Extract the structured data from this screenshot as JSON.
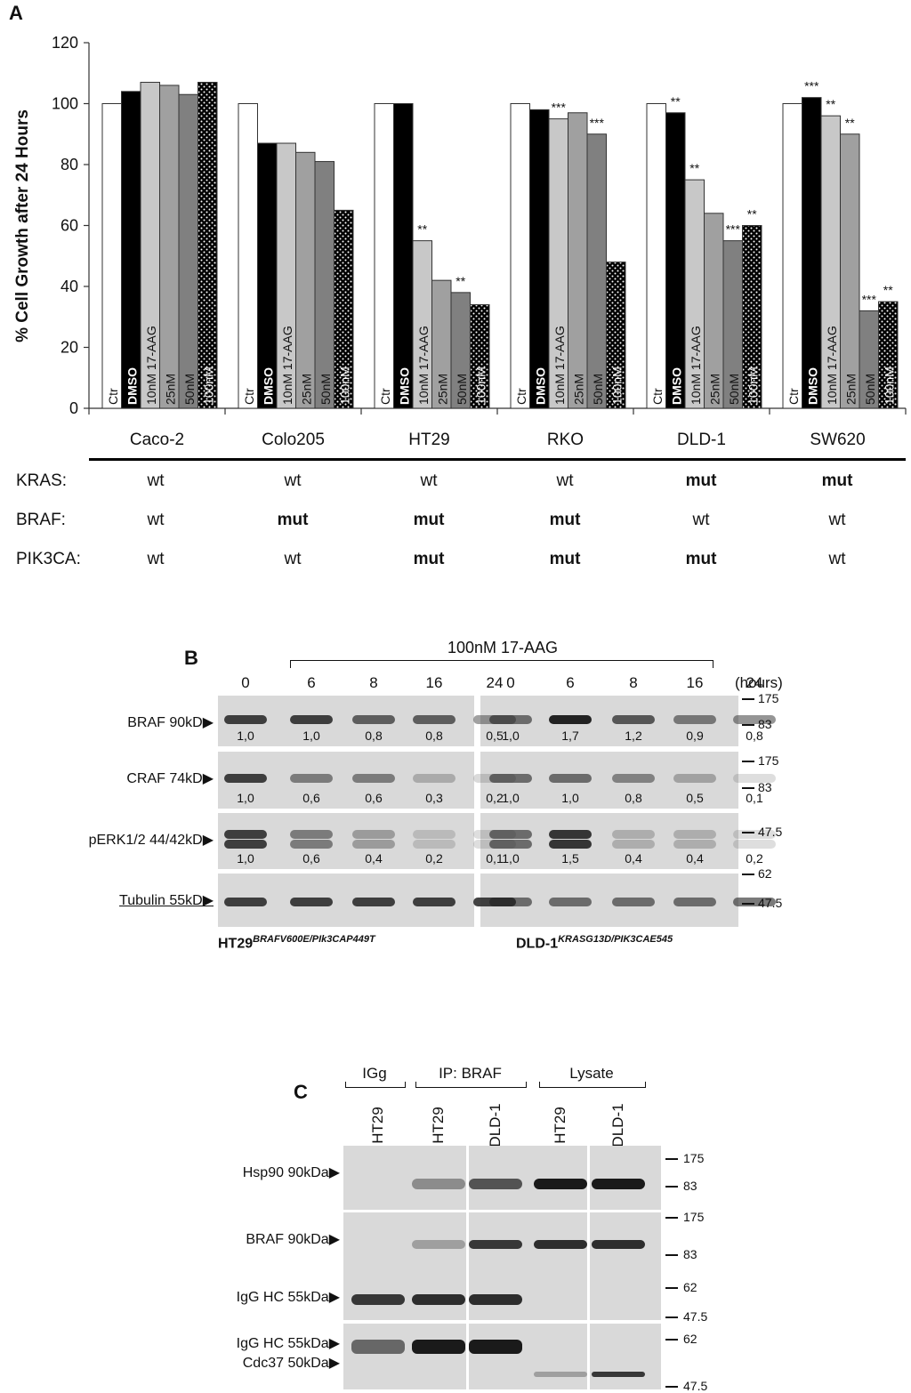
{
  "panelA": {
    "letter": "A",
    "chart_data": {
      "type": "bar",
      "ylabel": "% Cell Growth after 24 Hours",
      "ylim": [
        0,
        120
      ],
      "yticks": [
        0,
        20,
        40,
        60,
        80,
        100,
        120
      ],
      "categories": [
        "Caco-2",
        "Colo205",
        "HT29",
        "RKO",
        "DLD-1",
        "SW620"
      ],
      "bar_labels": [
        "Ctr",
        "DMSO",
        "10nM 17-AAG",
        "25nM",
        "50nM",
        "100nM"
      ],
      "series": [
        {
          "values": [
            100,
            100,
            100,
            100,
            100,
            100
          ]
        },
        {
          "values": [
            104,
            87,
            100,
            98,
            97,
            102
          ]
        },
        {
          "values": [
            107,
            87,
            55,
            95,
            75,
            96
          ]
        },
        {
          "values": [
            106,
            84,
            42,
            97,
            64,
            90
          ]
        },
        {
          "values": [
            103,
            81,
            38,
            90,
            55,
            32
          ]
        },
        {
          "values": [
            107,
            65,
            34,
            48,
            60,
            35
          ]
        }
      ],
      "significance": [
        [
          "",
          "",
          "",
          "",
          "",
          ""
        ],
        [
          "",
          "",
          "",
          "",
          "**",
          "***"
        ],
        [
          "",
          "",
          "**",
          "***",
          "**",
          "**"
        ],
        [
          "",
          "",
          "",
          "",
          "",
          "**"
        ],
        [
          "",
          "",
          "**",
          "***",
          "***",
          "***"
        ],
        [
          "",
          "",
          "",
          "",
          "**",
          "**"
        ]
      ],
      "bar_styles": [
        "white",
        "black",
        "lightgray",
        "gray",
        "darkgray",
        "dotted"
      ]
    },
    "genotype": {
      "rows": [
        {
          "label": "KRAS:",
          "values": [
            "wt",
            "wt",
            "wt",
            "wt",
            "mut",
            "mut"
          ]
        },
        {
          "label": "BRAF:",
          "values": [
            "wt",
            "mut",
            "mut",
            "mut",
            "wt",
            "wt"
          ]
        },
        {
          "label": "PIK3CA:",
          "values": [
            "wt",
            "wt",
            "mut",
            "mut",
            "mut",
            "wt"
          ]
        }
      ]
    }
  },
  "panelB": {
    "letter": "B",
    "treatment": "100nM 17-AAG",
    "hours_label": "(hours)",
    "timepoints_left": [
      "0",
      "6",
      "8",
      "16",
      "24"
    ],
    "timepoints_right": [
      "0",
      "6",
      "8",
      "16",
      "24"
    ],
    "rows": [
      {
        "label": "BRAF 90kD▶",
        "left": [
          "1,0",
          "1,0",
          "0,8",
          "0,8",
          "0,5"
        ],
        "right": [
          "1,0",
          "1,7",
          "1,2",
          "0,9",
          "0,8"
        ],
        "mw": [
          "175",
          "83"
        ]
      },
      {
        "label": "CRAF 74kD▶",
        "left": [
          "1,0",
          "0,6",
          "0,6",
          "0,3",
          "0,2"
        ],
        "right": [
          "1,0",
          "1,0",
          "0,8",
          "0,5",
          "0,1"
        ],
        "mw": [
          "175",
          "83"
        ]
      },
      {
        "label": "pERK1/2 44/42kD▶",
        "left": [
          "1,0",
          "0,6",
          "0,4",
          "0,2",
          "0,1"
        ],
        "right": [
          "1,0",
          "1,5",
          "0,4",
          "0,4",
          "0,2"
        ],
        "mw": [
          "47.5"
        ]
      },
      {
        "label": "Tubulin 55kD▶",
        "left": [],
        "right": [],
        "mw": [
          "62",
          "47.5"
        ]
      }
    ],
    "cell_left": {
      "name": "HT29",
      "sup": "BRAFV600E/PIk3CAP449T"
    },
    "cell_right": {
      "name": "DLD-1",
      "sup": "KRASG13D/PIK3CAE545"
    }
  },
  "panelC": {
    "letter": "C",
    "groups": [
      "IGg",
      "IP: BRAF",
      "Lysate"
    ],
    "lanes": [
      "HT29",
      "HT29",
      "DLD-1",
      "HT29",
      "DLD-1"
    ],
    "row_labels": [
      "Hsp90 90kDa▶",
      "BRAF 90kDa▶",
      "IgG HC 55kDa▶",
      "IgG HC 55kDa▶",
      "Cdc37 50kDa▶"
    ],
    "mw_markers": [
      "175",
      "83",
      "175",
      "83",
      "62",
      "47.5",
      "62",
      "47.5"
    ]
  }
}
